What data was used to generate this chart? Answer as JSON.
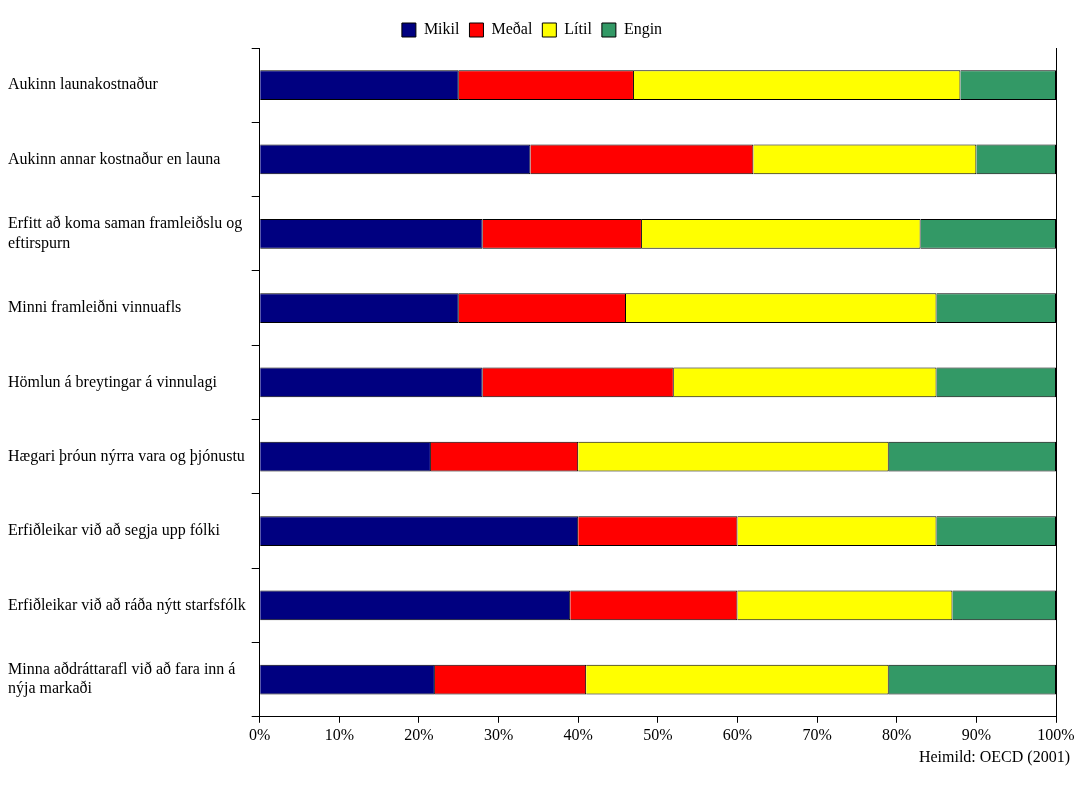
{
  "chart_data": {
    "type": "bar",
    "orientation": "horizontal",
    "stacked": true,
    "categories": [
      "Aukinn launakostnaður",
      "Aukinn annar kostnaður en launa",
      "Erfitt að koma saman framleiðslu og eftirspurn",
      "Minni framleiðni vinnuafls",
      "Hömlun á breytingar á vinnulagi",
      "Hægari þróun nýrra vara og þjónustu",
      "Erfiðleikar við að segja upp fólki",
      "Erfiðleikar við að ráða nýtt starfsfólk",
      "Minna aðdráttarafl við að fara inn á nýja markaði"
    ],
    "series": [
      {
        "name": "Mikil",
        "color": "#000080",
        "values": [
          25,
          34,
          28,
          25,
          28,
          21.5,
          40,
          39,
          22
        ]
      },
      {
        "name": "Meðal",
        "color": "#ff0000",
        "values": [
          22,
          28,
          20,
          21,
          24,
          18.5,
          20,
          21,
          19
        ]
      },
      {
        "name": "Lítil",
        "color": "#ffff00",
        "values": [
          41,
          28,
          35,
          39,
          33,
          39,
          25,
          27,
          38
        ]
      },
      {
        "name": "Engin",
        "color": "#339966",
        "values": [
          12,
          10,
          17,
          15,
          15,
          21,
          15,
          13,
          21
        ]
      }
    ],
    "xlim": [
      0,
      100
    ],
    "xticks": [
      {
        "value": 0,
        "label": "0%"
      },
      {
        "value": 10,
        "label": "10%"
      },
      {
        "value": 20,
        "label": "20%"
      },
      {
        "value": 30,
        "label": "30%"
      },
      {
        "value": 40,
        "label": "40%"
      },
      {
        "value": 50,
        "label": "50%"
      },
      {
        "value": 60,
        "label": "60%"
      },
      {
        "value": 70,
        "label": "70%"
      },
      {
        "value": 80,
        "label": "80%"
      },
      {
        "value": 90,
        "label": "90%"
      },
      {
        "value": 100,
        "label": "100%"
      }
    ],
    "grid": false,
    "legend": "top",
    "annotations": [
      "Heimild: OECD (2001)"
    ]
  }
}
